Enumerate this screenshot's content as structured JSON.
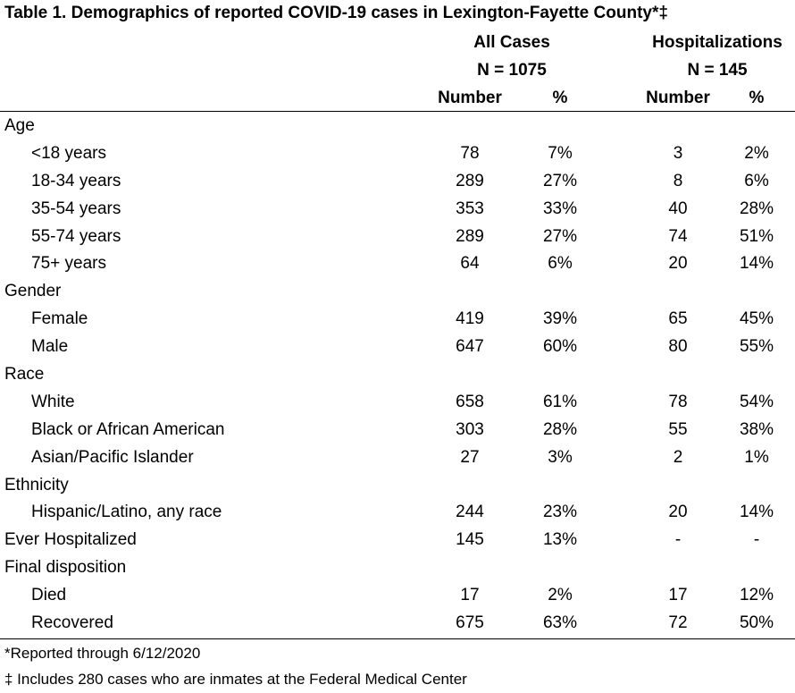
{
  "title": "Table 1. Demographics of reported COVID-19 cases in Lexington-Fayette County*‡",
  "groups": {
    "all_cases": {
      "label": "All Cases",
      "n": "N = 1075"
    },
    "hospitalizations": {
      "label": "Hospitalizations",
      "n": "N = 145"
    }
  },
  "columns": {
    "number": "Number",
    "percent": "%"
  },
  "rows": [
    {
      "label": "Age",
      "type": "category"
    },
    {
      "label": "<18 years",
      "type": "sub",
      "all_number": "78",
      "all_pct": "7%",
      "hosp_number": "3",
      "hosp_pct": "2%"
    },
    {
      "label": "18-34 years",
      "type": "sub",
      "all_number": "289",
      "all_pct": "27%",
      "hosp_number": "8",
      "hosp_pct": "6%"
    },
    {
      "label": "35-54 years",
      "type": "sub",
      "all_number": "353",
      "all_pct": "33%",
      "hosp_number": "40",
      "hosp_pct": "28%"
    },
    {
      "label": "55-74 years",
      "type": "sub",
      "all_number": "289",
      "all_pct": "27%",
      "hosp_number": "74",
      "hosp_pct": "51%"
    },
    {
      "label": "75+ years",
      "type": "sub",
      "all_number": "64",
      "all_pct": "6%",
      "hosp_number": "20",
      "hosp_pct": "14%"
    },
    {
      "label": "Gender",
      "type": "category"
    },
    {
      "label": "Female",
      "type": "sub",
      "all_number": "419",
      "all_pct": "39%",
      "hosp_number": "65",
      "hosp_pct": "45%"
    },
    {
      "label": "Male",
      "type": "sub",
      "all_number": "647",
      "all_pct": "60%",
      "hosp_number": "80",
      "hosp_pct": "55%"
    },
    {
      "label": "Race",
      "type": "category"
    },
    {
      "label": "White",
      "type": "sub",
      "all_number": "658",
      "all_pct": "61%",
      "hosp_number": "78",
      "hosp_pct": "54%"
    },
    {
      "label": "Black or African American",
      "type": "sub",
      "all_number": "303",
      "all_pct": "28%",
      "hosp_number": "55",
      "hosp_pct": "38%"
    },
    {
      "label": "Asian/Pacific Islander",
      "type": "sub",
      "all_number": "27",
      "all_pct": "3%",
      "hosp_number": "2",
      "hosp_pct": "1%"
    },
    {
      "label": "Ethnicity",
      "type": "category"
    },
    {
      "label": "Hispanic/Latino, any race",
      "type": "sub",
      "all_number": "244",
      "all_pct": "23%",
      "hosp_number": "20",
      "hosp_pct": "14%"
    },
    {
      "label": "Ever Hospitalized",
      "type": "category",
      "all_number": "145",
      "all_pct": "13%",
      "hosp_number": "-",
      "hosp_pct": "-"
    },
    {
      "label": "Final disposition",
      "type": "category"
    },
    {
      "label": "Died",
      "type": "sub",
      "all_number": "17",
      "all_pct": "2%",
      "hosp_number": "17",
      "hosp_pct": "12%"
    },
    {
      "label": "Recovered",
      "type": "sub",
      "all_number": "675",
      "all_pct": "63%",
      "hosp_number": "72",
      "hosp_pct": "50%"
    }
  ],
  "footnotes": {
    "reported": "*Reported through 6/12/2020",
    "inmates": "‡ Includes 280 cases who are inmates at the Federal Medical Center"
  }
}
